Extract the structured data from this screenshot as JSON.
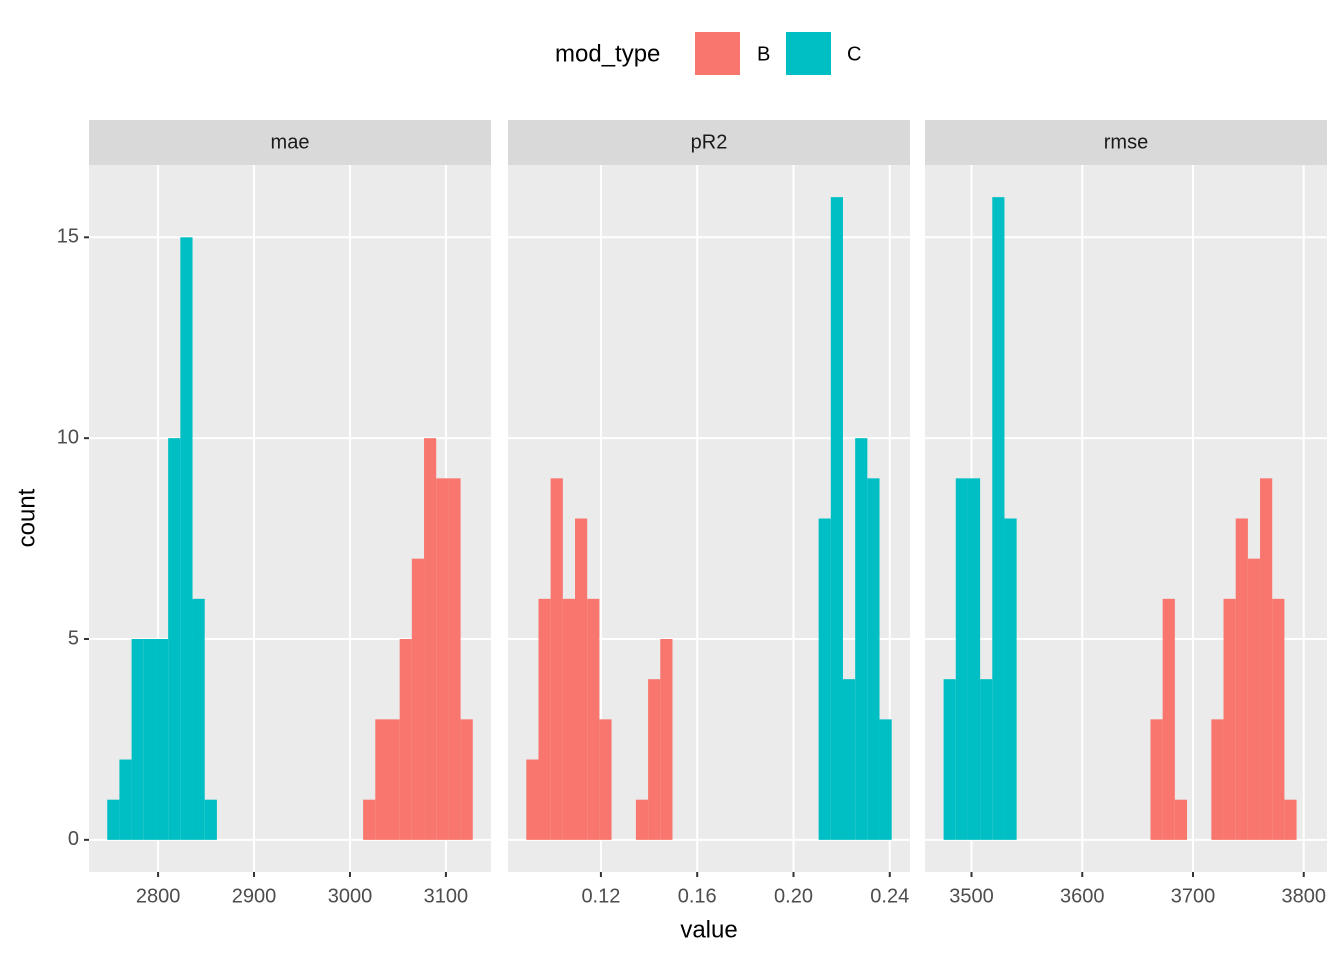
{
  "legend_title": "mod_type",
  "xlabel": "value",
  "ylabel": "count",
  "chart_data": [
    {
      "type": "histogram",
      "title": "mae",
      "series": [
        {
          "name": "B",
          "color": "#F8766D",
          "bins": [
            3013.7,
            3026.4,
            3039.1,
            3051.8,
            3064.5,
            3077.2,
            3089.9,
            3102.6,
            3115.3,
            3128.0
          ],
          "values": [
            1,
            3,
            3,
            5,
            7,
            10,
            9,
            9,
            3
          ]
        },
        {
          "name": "C",
          "color": "#00BFC4",
          "bins": [
            2747.0,
            2759.7,
            2772.4,
            2785.1,
            2797.8,
            2810.5,
            2823.2,
            2835.9,
            2848.6,
            2861.3
          ],
          "values": [
            1,
            2,
            5,
            5,
            5,
            10,
            15,
            6,
            1
          ]
        }
      ],
      "xlim": [
        2728,
        3147
      ],
      "xticks": [
        2800,
        2900,
        3000,
        3100
      ],
      "ylim": [
        -0.8,
        16.8
      ],
      "yticks": [
        0,
        5,
        10,
        15
      ],
      "grid": true
    },
    {
      "type": "histogram",
      "title": "pR2",
      "series": [
        {
          "name": "B",
          "color": "#F8766D",
          "bins": [
            0.089,
            0.09406,
            0.09912,
            0.10418,
            0.10924,
            0.1143,
            0.11936,
            0.12442,
            0.12948,
            0.13454,
            0.1396,
            0.14466,
            0.14972,
            0.15478
          ],
          "values": [
            2,
            6,
            9,
            6,
            8,
            6,
            3,
            0,
            0,
            1,
            4,
            5,
            0
          ]
        },
        {
          "name": "C",
          "color": "#00BFC4",
          "bins": [
            0.21044,
            0.2155,
            0.22056,
            0.22562,
            0.23068,
            0.23574,
            0.2408
          ],
          "values": [
            8,
            16,
            4,
            10,
            9,
            3
          ]
        }
      ],
      "xlim": [
        0.0814,
        0.2484
      ],
      "xticks": [
        0.12,
        0.16,
        {
          "value": 0.2,
          "label": "0.20"
        },
        0.24
      ],
      "ylim": [
        -0.8,
        16.8
      ],
      "yticks": [
        0,
        5,
        10,
        15
      ],
      "grid": true
    },
    {
      "type": "histogram",
      "title": "rmse",
      "series": [
        {
          "name": "B",
          "color": "#F8766D",
          "bins": [
            3661.63,
            3672.62,
            3683.61,
            3694.6,
            3705.59,
            3716.58,
            3727.57,
            3738.56,
            3749.55,
            3760.54,
            3771.53,
            3782.52,
            3793.51,
            3804.5
          ],
          "values": [
            3,
            6,
            1,
            0,
            0,
            3,
            6,
            8,
            7,
            9,
            6,
            1,
            0
          ]
        },
        {
          "name": "C",
          "color": "#00BFC4",
          "bins": [
            3474.8,
            3485.79,
            3496.78,
            3507.77,
            3518.76,
            3529.75,
            3540.74
          ],
          "values": [
            4,
            9,
            9,
            4,
            16,
            8
          ]
        }
      ],
      "xlim": [
        3458,
        3821
      ],
      "xticks": [
        3500,
        3600,
        3700,
        3800
      ],
      "ylim": [
        -0.8,
        16.8
      ],
      "yticks": [
        0,
        5,
        10,
        15
      ],
      "grid": true
    }
  ]
}
